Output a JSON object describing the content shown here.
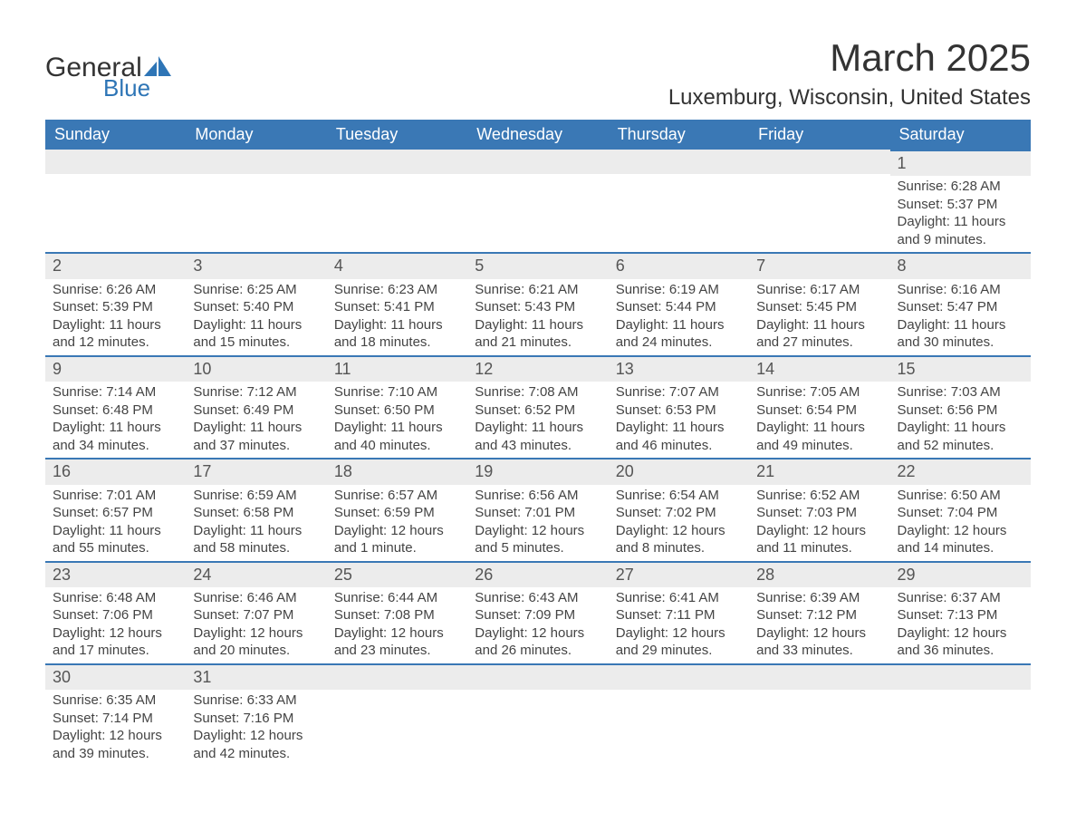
{
  "logo": {
    "text1": "General",
    "text2": "Blue",
    "accent_color": "#2e75b6"
  },
  "title": "March 2025",
  "location": "Luxemburg, Wisconsin, United States",
  "header_bg": "#3a78b5",
  "daynum_bg": "#ececec",
  "columns": [
    "Sunday",
    "Monday",
    "Tuesday",
    "Wednesday",
    "Thursday",
    "Friday",
    "Saturday"
  ],
  "weeks": [
    [
      null,
      null,
      null,
      null,
      null,
      null,
      {
        "n": "1",
        "sr": "6:28 AM",
        "ss": "5:37 PM",
        "dl": "11 hours and 9 minutes."
      }
    ],
    [
      {
        "n": "2",
        "sr": "6:26 AM",
        "ss": "5:39 PM",
        "dl": "11 hours and 12 minutes."
      },
      {
        "n": "3",
        "sr": "6:25 AM",
        "ss": "5:40 PM",
        "dl": "11 hours and 15 minutes."
      },
      {
        "n": "4",
        "sr": "6:23 AM",
        "ss": "5:41 PM",
        "dl": "11 hours and 18 minutes."
      },
      {
        "n": "5",
        "sr": "6:21 AM",
        "ss": "5:43 PM",
        "dl": "11 hours and 21 minutes."
      },
      {
        "n": "6",
        "sr": "6:19 AM",
        "ss": "5:44 PM",
        "dl": "11 hours and 24 minutes."
      },
      {
        "n": "7",
        "sr": "6:17 AM",
        "ss": "5:45 PM",
        "dl": "11 hours and 27 minutes."
      },
      {
        "n": "8",
        "sr": "6:16 AM",
        "ss": "5:47 PM",
        "dl": "11 hours and 30 minutes."
      }
    ],
    [
      {
        "n": "9",
        "sr": "7:14 AM",
        "ss": "6:48 PM",
        "dl": "11 hours and 34 minutes."
      },
      {
        "n": "10",
        "sr": "7:12 AM",
        "ss": "6:49 PM",
        "dl": "11 hours and 37 minutes."
      },
      {
        "n": "11",
        "sr": "7:10 AM",
        "ss": "6:50 PM",
        "dl": "11 hours and 40 minutes."
      },
      {
        "n": "12",
        "sr": "7:08 AM",
        "ss": "6:52 PM",
        "dl": "11 hours and 43 minutes."
      },
      {
        "n": "13",
        "sr": "7:07 AM",
        "ss": "6:53 PM",
        "dl": "11 hours and 46 minutes."
      },
      {
        "n": "14",
        "sr": "7:05 AM",
        "ss": "6:54 PM",
        "dl": "11 hours and 49 minutes."
      },
      {
        "n": "15",
        "sr": "7:03 AM",
        "ss": "6:56 PM",
        "dl": "11 hours and 52 minutes."
      }
    ],
    [
      {
        "n": "16",
        "sr": "7:01 AM",
        "ss": "6:57 PM",
        "dl": "11 hours and 55 minutes."
      },
      {
        "n": "17",
        "sr": "6:59 AM",
        "ss": "6:58 PM",
        "dl": "11 hours and 58 minutes."
      },
      {
        "n": "18",
        "sr": "6:57 AM",
        "ss": "6:59 PM",
        "dl": "12 hours and 1 minute."
      },
      {
        "n": "19",
        "sr": "6:56 AM",
        "ss": "7:01 PM",
        "dl": "12 hours and 5 minutes."
      },
      {
        "n": "20",
        "sr": "6:54 AM",
        "ss": "7:02 PM",
        "dl": "12 hours and 8 minutes."
      },
      {
        "n": "21",
        "sr": "6:52 AM",
        "ss": "7:03 PM",
        "dl": "12 hours and 11 minutes."
      },
      {
        "n": "22",
        "sr": "6:50 AM",
        "ss": "7:04 PM",
        "dl": "12 hours and 14 minutes."
      }
    ],
    [
      {
        "n": "23",
        "sr": "6:48 AM",
        "ss": "7:06 PM",
        "dl": "12 hours and 17 minutes."
      },
      {
        "n": "24",
        "sr": "6:46 AM",
        "ss": "7:07 PM",
        "dl": "12 hours and 20 minutes."
      },
      {
        "n": "25",
        "sr": "6:44 AM",
        "ss": "7:08 PM",
        "dl": "12 hours and 23 minutes."
      },
      {
        "n": "26",
        "sr": "6:43 AM",
        "ss": "7:09 PM",
        "dl": "12 hours and 26 minutes."
      },
      {
        "n": "27",
        "sr": "6:41 AM",
        "ss": "7:11 PM",
        "dl": "12 hours and 29 minutes."
      },
      {
        "n": "28",
        "sr": "6:39 AM",
        "ss": "7:12 PM",
        "dl": "12 hours and 33 minutes."
      },
      {
        "n": "29",
        "sr": "6:37 AM",
        "ss": "7:13 PM",
        "dl": "12 hours and 36 minutes."
      }
    ],
    [
      {
        "n": "30",
        "sr": "6:35 AM",
        "ss": "7:14 PM",
        "dl": "12 hours and 39 minutes."
      },
      {
        "n": "31",
        "sr": "6:33 AM",
        "ss": "7:16 PM",
        "dl": "12 hours and 42 minutes."
      },
      null,
      null,
      null,
      null,
      null
    ]
  ],
  "labels": {
    "sunrise": "Sunrise: ",
    "sunset": "Sunset: ",
    "daylight": "Daylight: "
  }
}
